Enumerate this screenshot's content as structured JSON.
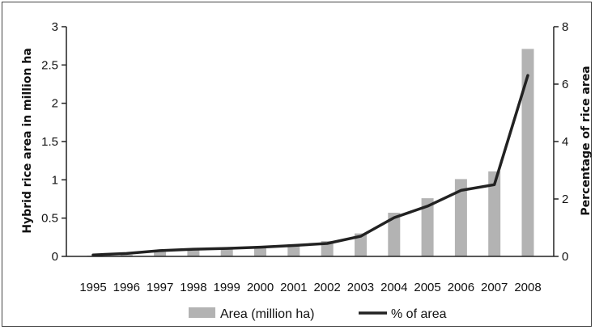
{
  "chart_data": {
    "type": "bar",
    "categories": [
      "1995",
      "1996",
      "1997",
      "1998",
      "1999",
      "2000",
      "2001",
      "2002",
      "2003",
      "2004",
      "2005",
      "2006",
      "2007",
      "2008"
    ],
    "series": [
      {
        "name": "Area (million ha)",
        "type": "bar",
        "axis": "left",
        "color": "#b3b3b3",
        "values": [
          0.01,
          0.02,
          0.06,
          0.08,
          0.1,
          0.12,
          0.16,
          0.2,
          0.3,
          0.57,
          0.76,
          1.01,
          1.11,
          2.71
        ]
      },
      {
        "name": "% of area",
        "type": "line",
        "axis": "right",
        "color": "#222222",
        "values": [
          0.05,
          0.1,
          0.2,
          0.25,
          0.28,
          0.32,
          0.38,
          0.45,
          0.7,
          1.35,
          1.75,
          2.3,
          2.5,
          6.3
        ]
      }
    ],
    "ylabel": "Hybrid rice area in million ha",
    "y2label": "Percentage of rice area",
    "ylim": [
      0,
      3
    ],
    "y2lim": [
      0,
      8
    ],
    "yticks": [
      "0",
      "0.5",
      "1",
      "1.5",
      "2",
      "2.5",
      "3"
    ],
    "y2ticks": [
      "0",
      "2",
      "4",
      "6",
      "8"
    ],
    "legend_position": "bottom",
    "grid": false
  }
}
